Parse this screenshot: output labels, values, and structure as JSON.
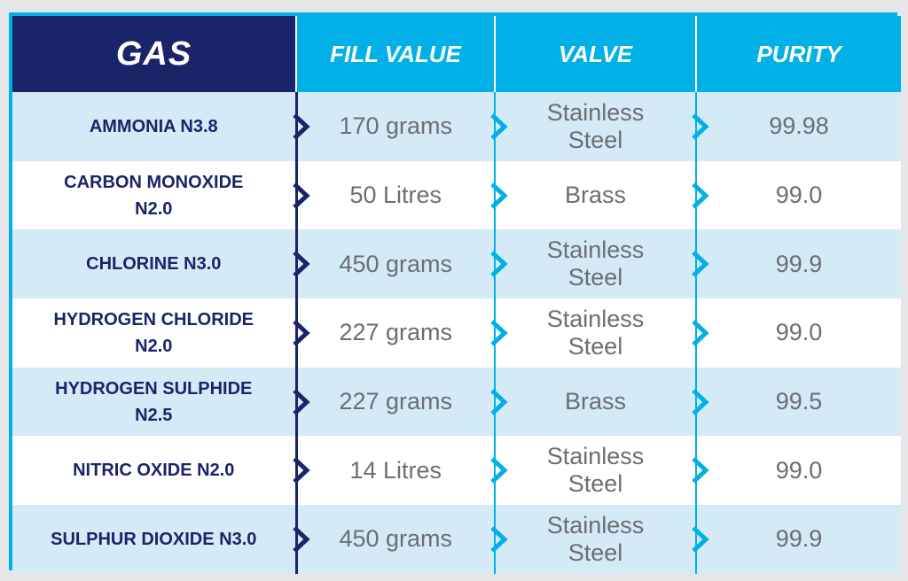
{
  "headers": {
    "gas": "GAS",
    "fill_value": "FILL VALUE",
    "valve": "VALVE",
    "purity": "PURITY"
  },
  "colors": {
    "navy": "#1a2468",
    "cyan": "#00b0e6",
    "row_light": "#d4ebf7",
    "row_white": "#ffffff",
    "value_text": "#6b6e73"
  },
  "icons": {
    "row_marker": "chevron-right-icon"
  },
  "rows": [
    {
      "gas": [
        "AMMONIA N3.8"
      ],
      "fill": "170 grams",
      "valve": [
        "Stainless",
        "Steel"
      ],
      "purity": "99.98"
    },
    {
      "gas": [
        "CARBON MONOXIDE",
        "N2.0"
      ],
      "fill": "50 Litres",
      "valve": [
        "Brass"
      ],
      "purity": "99.0"
    },
    {
      "gas": [
        "CHLORINE N3.0"
      ],
      "fill": "450 grams",
      "valve": [
        "Stainless",
        "Steel"
      ],
      "purity": "99.9"
    },
    {
      "gas": [
        "HYDROGEN CHLORIDE",
        "N2.0"
      ],
      "fill": "227 grams",
      "valve": [
        "Stainless",
        "Steel"
      ],
      "purity": "99.0"
    },
    {
      "gas": [
        "HYDROGEN SULPHIDE",
        "N2.5"
      ],
      "fill": "227 grams",
      "valve": [
        "Brass"
      ],
      "purity": "99.5"
    },
    {
      "gas": [
        "NITRIC OXIDE N2.0"
      ],
      "fill": "14 Litres",
      "valve": [
        "Stainless",
        "Steel"
      ],
      "purity": "99.0"
    },
    {
      "gas": [
        "SULPHUR DIOXIDE N3.0"
      ],
      "fill": "450 grams",
      "valve": [
        "Stainless",
        "Steel"
      ],
      "purity": "99.9"
    }
  ]
}
